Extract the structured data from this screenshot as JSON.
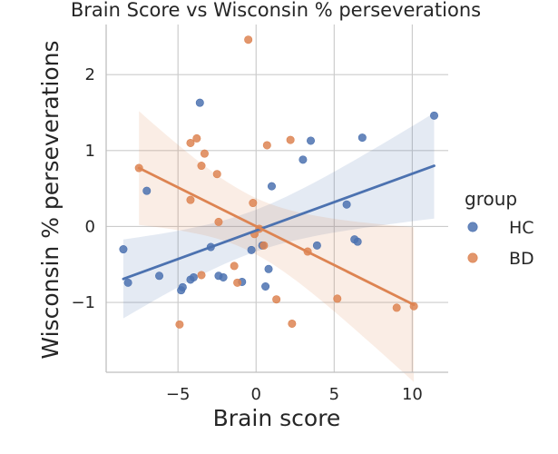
{
  "chart_data": {
    "type": "scatter",
    "title": "Brain Score vs Wisconsin % perseverations",
    "xlabel": "Brain score",
    "ylabel": "Wisconsin % perseverations",
    "xlim": [
      -9.6,
      12.3
    ],
    "ylim": [
      -1.92,
      2.66
    ],
    "xticks": [
      -5,
      0,
      5,
      10
    ],
    "yticks": [
      -1,
      0,
      1,
      2
    ],
    "xtick_labels": [
      "−5",
      "0",
      "5",
      "10"
    ],
    "ytick_labels": [
      "−1",
      "0",
      "1",
      "2"
    ],
    "grid": true,
    "legend_position": "right",
    "legend_title": "group",
    "series": [
      {
        "name": "HC",
        "color": "#4c72b0",
        "points": [
          [
            -8.5,
            -0.3
          ],
          [
            -8.2,
            -0.74
          ],
          [
            -7.0,
            0.47
          ],
          [
            -6.2,
            -0.65
          ],
          [
            -4.8,
            -0.84
          ],
          [
            -4.7,
            -0.8
          ],
          [
            -4.2,
            -0.7
          ],
          [
            -4.0,
            -0.67
          ],
          [
            -3.6,
            1.63
          ],
          [
            -2.9,
            -0.27
          ],
          [
            -2.4,
            -0.65
          ],
          [
            -2.1,
            -0.67
          ],
          [
            -0.9,
            -0.73
          ],
          [
            -0.3,
            -0.31
          ],
          [
            0.4,
            -0.25
          ],
          [
            0.6,
            -0.79
          ],
          [
            0.8,
            -0.56
          ],
          [
            1.0,
            0.53
          ],
          [
            3.0,
            0.88
          ],
          [
            3.5,
            1.13
          ],
          [
            3.9,
            -0.25
          ],
          [
            5.8,
            0.29
          ],
          [
            6.3,
            -0.17
          ],
          [
            6.5,
            -0.2
          ],
          [
            6.8,
            1.17
          ],
          [
            11.4,
            1.46
          ]
        ],
        "fit": {
          "x": [
            -8.5,
            11.4
          ],
          "y": [
            -0.69,
            0.8
          ]
        }
      },
      {
        "name": "BD",
        "color": "#dd8452",
        "points": [
          [
            -7.5,
            0.77
          ],
          [
            -4.9,
            -1.29
          ],
          [
            -4.2,
            1.1
          ],
          [
            -4.2,
            0.35
          ],
          [
            -3.8,
            1.16
          ],
          [
            -3.5,
            0.8
          ],
          [
            -3.5,
            -0.64
          ],
          [
            -3.3,
            0.96
          ],
          [
            -2.5,
            0.69
          ],
          [
            -2.4,
            0.06
          ],
          [
            -1.4,
            -0.52
          ],
          [
            -1.2,
            -0.74
          ],
          [
            -0.5,
            2.46
          ],
          [
            -0.2,
            0.31
          ],
          [
            -0.1,
            -0.1
          ],
          [
            0.2,
            -0.03
          ],
          [
            0.5,
            -0.25
          ],
          [
            0.7,
            1.07
          ],
          [
            1.3,
            -0.96
          ],
          [
            2.2,
            1.14
          ],
          [
            2.3,
            -1.28
          ],
          [
            3.3,
            -0.33
          ],
          [
            5.2,
            -0.95
          ],
          [
            9.0,
            -1.07
          ],
          [
            10.1,
            -1.05
          ]
        ],
        "fit": {
          "x": [
            -7.5,
            10.1
          ],
          "y": [
            0.77,
            -1.03
          ]
        }
      }
    ]
  }
}
